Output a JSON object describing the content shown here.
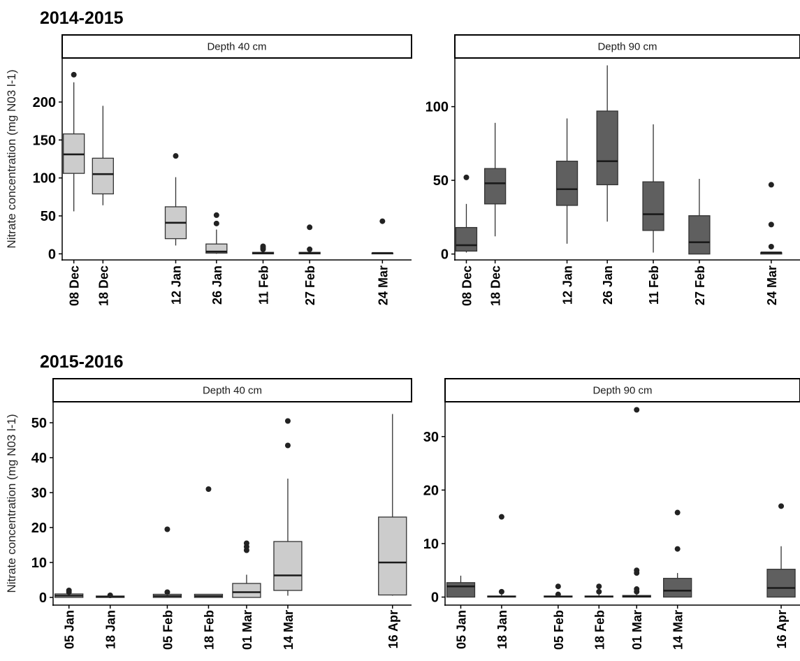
{
  "chart_data": [
    {
      "type": "box",
      "section_title": "2014-2015",
      "title": "Depth 40 cm",
      "ylabel": "Nitrate concentration (mg N03 l-1)",
      "ylim": [
        -8,
        258
      ],
      "yticks": [
        0,
        50,
        100,
        150,
        200
      ],
      "x_range": [
        -4,
        116
      ],
      "categories": [
        "08 Dec",
        "18 Dec",
        "12 Jan",
        "26 Jan",
        "11 Feb",
        "27 Feb",
        "24 Mar"
      ],
      "x_days": [
        0,
        10,
        35,
        49,
        65,
        81,
        106
      ],
      "fill": "#cccccc",
      "boxes": [
        {
          "label": "08 Dec",
          "whisker_low": 56,
          "q1": 106,
          "median": 131,
          "q3": 158,
          "whisker_high": 226,
          "outliers": [
            236
          ]
        },
        {
          "label": "18 Dec",
          "whisker_low": 64,
          "q1": 79,
          "median": 105,
          "q3": 126,
          "whisker_high": 195,
          "outliers": []
        },
        {
          "label": "12 Jan",
          "whisker_low": 11,
          "q1": 20,
          "median": 41,
          "q3": 62,
          "whisker_high": 101,
          "outliers": [
            129
          ]
        },
        {
          "label": "26 Jan",
          "whisker_low": 0,
          "q1": 1,
          "median": 3,
          "q3": 13,
          "whisker_high": 32,
          "outliers": [
            40,
            51
          ]
        },
        {
          "label": "11 Feb",
          "whisker_low": 0,
          "q1": 0,
          "median": 1,
          "q3": 2,
          "whisker_high": 4,
          "outliers": [
            6,
            8,
            10
          ]
        },
        {
          "label": "27 Feb",
          "whisker_low": 0,
          "q1": 0,
          "median": 1,
          "q3": 2,
          "whisker_high": 3,
          "outliers": [
            6,
            35
          ]
        },
        {
          "label": "24 Mar",
          "whisker_low": 0,
          "q1": 0,
          "median": 1,
          "q3": 1,
          "whisker_high": 2,
          "outliers": [
            43
          ]
        }
      ]
    },
    {
      "type": "box",
      "section_title": "",
      "title": "Depth 90 cm",
      "ylabel": "",
      "ylim": [
        -4,
        133
      ],
      "yticks": [
        0,
        50,
        100
      ],
      "x_range": [
        -4,
        116
      ],
      "categories": [
        "08 Dec",
        "18 Dec",
        "12 Jan",
        "26 Jan",
        "11 Feb",
        "27 Feb",
        "24 Mar"
      ],
      "x_days": [
        0,
        10,
        35,
        49,
        65,
        81,
        106
      ],
      "fill": "#5f5f5f",
      "boxes": [
        {
          "label": "08 Dec",
          "whisker_low": 1,
          "q1": 2,
          "median": 6,
          "q3": 18,
          "whisker_high": 34,
          "outliers": [
            52
          ]
        },
        {
          "label": "18 Dec",
          "whisker_low": 12,
          "q1": 34,
          "median": 48,
          "q3": 58,
          "whisker_high": 89,
          "outliers": []
        },
        {
          "label": "12 Jan",
          "whisker_low": 7,
          "q1": 33,
          "median": 44,
          "q3": 63,
          "whisker_high": 92,
          "outliers": []
        },
        {
          "label": "26 Jan",
          "whisker_low": 22,
          "q1": 47,
          "median": 63,
          "q3": 97,
          "whisker_high": 128,
          "outliers": []
        },
        {
          "label": "11 Feb",
          "whisker_low": 1,
          "q1": 16,
          "median": 27,
          "q3": 49,
          "whisker_high": 88,
          "outliers": []
        },
        {
          "label": "27 Feb",
          "whisker_low": 0,
          "q1": 0,
          "median": 8,
          "q3": 26,
          "whisker_high": 51,
          "outliers": []
        },
        {
          "label": "24 Mar",
          "whisker_low": 0,
          "q1": 0,
          "median": 1,
          "q3": 1,
          "whisker_high": 1,
          "outliers": [
            5,
            20,
            47
          ]
        }
      ]
    },
    {
      "type": "box",
      "section_title": "2015-2016",
      "title": "Depth 40 cm",
      "ylabel": "Nitrate concentration (mg N03 l-1)",
      "ylim": [
        -2.2,
        56
      ],
      "yticks": [
        0,
        10,
        20,
        30,
        40,
        50
      ],
      "x_range": [
        -5,
        108
      ],
      "categories": [
        "05 Jan",
        "18 Jan",
        "05 Feb",
        "18 Feb",
        "01 Mar",
        "14 Mar",
        "16 Apr"
      ],
      "x_days": [
        0,
        13,
        31,
        44,
        56,
        69,
        102
      ],
      "fill": "#cccccc",
      "boxes": [
        {
          "label": "05 Jan",
          "whisker_low": 0,
          "q1": 0,
          "median": 0.5,
          "q3": 1,
          "whisker_high": 1.2,
          "outliers": [
            1.5,
            2
          ]
        },
        {
          "label": "18 Jan",
          "whisker_low": 0,
          "q1": 0,
          "median": 0.2,
          "q3": 0.4,
          "whisker_high": 0.5,
          "outliers": [
            0.6
          ]
        },
        {
          "label": "05 Feb",
          "whisker_low": 0,
          "q1": 0,
          "median": 0.4,
          "q3": 0.9,
          "whisker_high": 1,
          "outliers": [
            1.5,
            19.5
          ]
        },
        {
          "label": "18 Feb",
          "whisker_low": 0,
          "q1": 0,
          "median": 0.4,
          "q3": 0.9,
          "whisker_high": 1,
          "outliers": [
            31
          ]
        },
        {
          "label": "01 Mar",
          "whisker_low": 0,
          "q1": 0,
          "median": 1.5,
          "q3": 4,
          "whisker_high": 6.5,
          "outliers": [
            13.5,
            14.5,
            15.5
          ]
        },
        {
          "label": "14 Mar",
          "whisker_low": 0.5,
          "q1": 2,
          "median": 6.3,
          "q3": 16,
          "whisker_high": 34,
          "outliers": [
            43.5,
            50.5
          ]
        },
        {
          "label": "16 Apr",
          "whisker_low": 0.5,
          "q1": 0.7,
          "median": 10,
          "q3": 23,
          "whisker_high": 52.5,
          "outliers": []
        }
      ]
    },
    {
      "type": "box",
      "section_title": "",
      "title": "Depth 90 cm",
      "ylabel": "",
      "ylim": [
        -1.5,
        36.5
      ],
      "yticks": [
        0,
        10,
        20,
        30
      ],
      "x_range": [
        -5,
        108
      ],
      "categories": [
        "05 Jan",
        "18 Jan",
        "05 Feb",
        "18 Feb",
        "01 Mar",
        "14 Mar",
        "16 Apr"
      ],
      "x_days": [
        0,
        13,
        31,
        44,
        56,
        69,
        102
      ],
      "fill": "#5f5f5f",
      "boxes": [
        {
          "label": "05 Jan",
          "whisker_low": 0,
          "q1": 0,
          "median": 2,
          "q3": 2.7,
          "whisker_high": 4,
          "outliers": []
        },
        {
          "label": "18 Jan",
          "whisker_low": 0,
          "q1": 0,
          "median": 0.1,
          "q3": 0.2,
          "whisker_high": 0.5,
          "outliers": [
            1,
            15
          ]
        },
        {
          "label": "05 Feb",
          "whisker_low": 0,
          "q1": 0,
          "median": 0.1,
          "q3": 0.2,
          "whisker_high": 0.5,
          "outliers": [
            0.5,
            2
          ]
        },
        {
          "label": "18 Feb",
          "whisker_low": 0,
          "q1": 0,
          "median": 0.1,
          "q3": 0.2,
          "whisker_high": 0.5,
          "outliers": [
            1,
            2
          ]
        },
        {
          "label": "01 Mar",
          "whisker_low": 0,
          "q1": 0,
          "median": 0.1,
          "q3": 0.3,
          "whisker_high": 0.5,
          "outliers": [
            1,
            1.5,
            4.5,
            5,
            35
          ]
        },
        {
          "label": "14 Mar",
          "whisker_low": 0,
          "q1": 0,
          "median": 1.2,
          "q3": 3.5,
          "whisker_high": 4.5,
          "outliers": [
            9,
            15.8
          ]
        },
        {
          "label": "16 Apr",
          "whisker_low": 0,
          "q1": 0,
          "median": 1.7,
          "q3": 5.2,
          "whisker_high": 9.5,
          "outliers": [
            17
          ]
        }
      ]
    }
  ]
}
